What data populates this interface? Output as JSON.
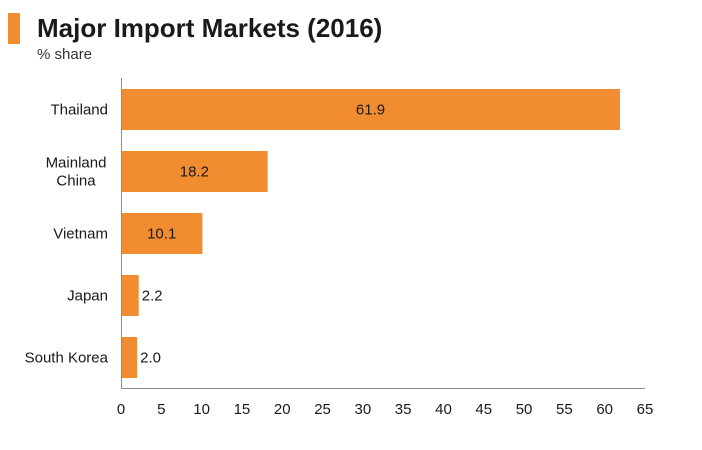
{
  "header": {
    "title": "Major Import Markets (2016)",
    "subtitle": "% share"
  },
  "colors": {
    "accent": "#f28c30",
    "bar": "#f28c30",
    "axis": "#8c8c8c"
  },
  "chart_data": {
    "type": "bar",
    "orientation": "horizontal",
    "title": "Major Import Markets (2016)",
    "subtitle": "% share",
    "xlabel": "",
    "ylabel": "",
    "categories": [
      [
        "Thailand"
      ],
      [
        "Mainland",
        "China"
      ],
      [
        "Vietnam"
      ],
      [
        "Japan"
      ],
      [
        "South Korea"
      ]
    ],
    "values": [
      61.9,
      18.2,
      10.1,
      2.2,
      2.0
    ],
    "data_labels": [
      "61.9",
      "18.2",
      "10.1",
      "2.2",
      "2.0"
    ],
    "xlim": [
      0,
      65
    ],
    "xticks": [
      "0",
      "5",
      "10",
      "15",
      "20",
      "25",
      "30",
      "35",
      "40",
      "45",
      "50",
      "55",
      "60",
      "65"
    ],
    "grid": false,
    "legend": "none"
  }
}
